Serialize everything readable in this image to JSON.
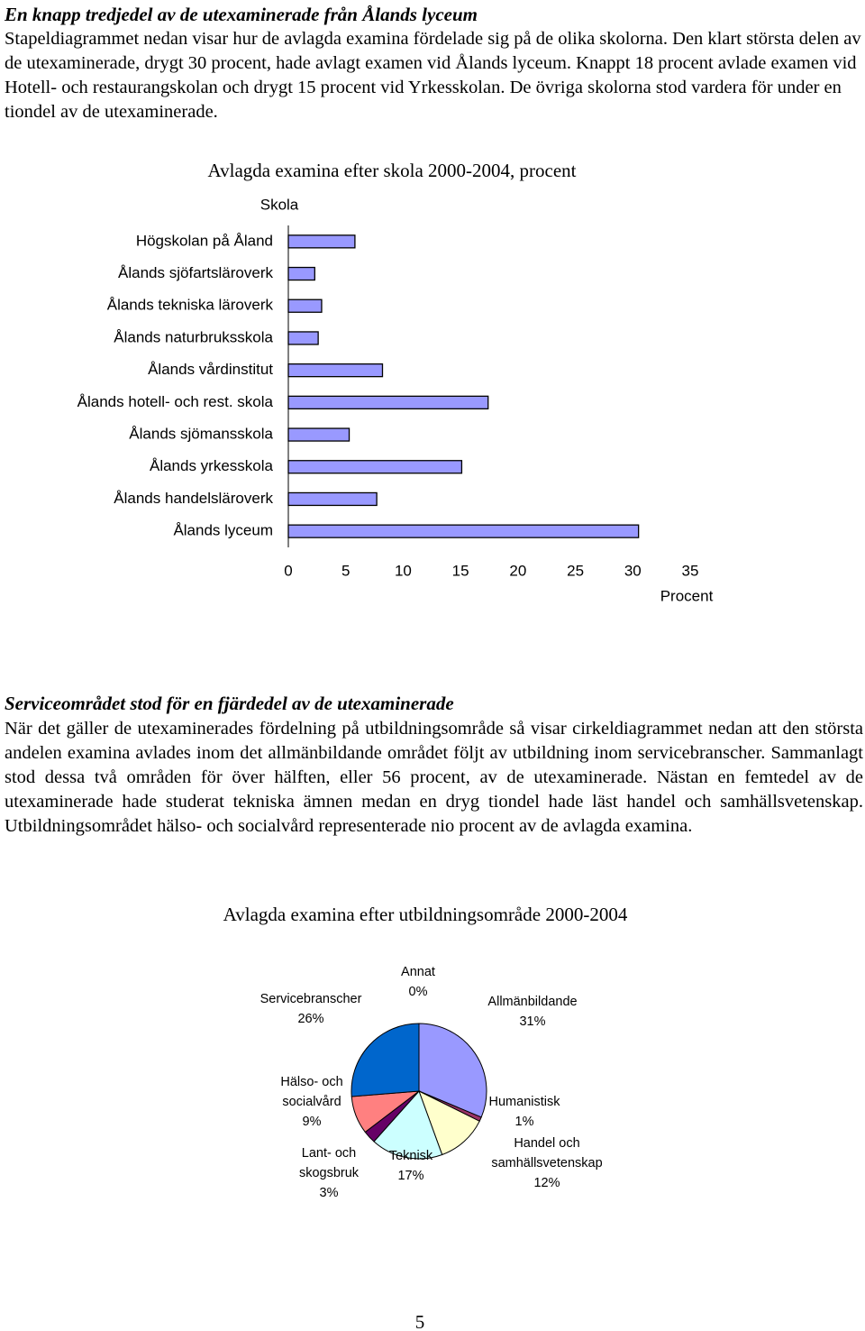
{
  "sections": [
    {
      "title": "En knapp tredjedel av de utexaminerade från Ålands lyceum",
      "text": "Stapeldiagrammet nedan visar hur de avlagda examina fördelade sig på de olika skolorna. Den klart största delen av de utexaminerade, drygt 30 procent, hade avlagt examen vid Ålands lyceum. Knappt 18 procent avlade examen vid Hotell- och restaurangskolan och drygt 15 procent vid Yrkesskolan. De övriga skolorna stod vardera för under en tiondel av de utexaminerade."
    },
    {
      "title": "Serviceområdet stod för en fjärdedel av de utexaminerade",
      "text": "När det gäller de utexaminerades fördelning på utbildningsområde så visar cirkeldiagrammet nedan att den största andelen examina avlades inom det allmänbildande området följt av utbildning inom servicebranscher. Sammanlagt stod dessa två områden för över hälften, eller 56 procent, av de utexaminerade. Nästan en femtedel av de utexaminerade hade studerat tekniska ämnen medan en dryg tiondel hade läst handel och samhällsvetenskap. Utbildningsområdet hälso- och socialvård representerade nio procent av de avlagda examina."
    }
  ],
  "page_number": 5,
  "chart_data": [
    {
      "type": "bar",
      "title": "Avlagda examina efter skola 2000-2004, procent",
      "category_label": "Skola",
      "x_label": "Procent",
      "categories": [
        "Högskolan på Åland",
        "Ålands sjöfartsläroverk",
        "Ålands tekniska läroverk",
        "Ålands naturbruksskola",
        "Ålands vårdinstitut",
        "Ålands hotell- och rest. skola",
        "Ålands sjömansskola",
        "Ålands yrkesskola",
        "Ålands handelsläroverk",
        "Ålands lyceum"
      ],
      "values": [
        5.8,
        2.3,
        2.9,
        2.6,
        8.2,
        17.4,
        5.3,
        15.1,
        7.7,
        30.5
      ],
      "color": "#9999ff",
      "xlim": [
        0,
        35
      ],
      "xticks": [
        0,
        5,
        10,
        15,
        20,
        25,
        30,
        35
      ]
    },
    {
      "type": "pie",
      "title": "Avlagda examina efter utbildningsområde 2000-2004",
      "categories": [
        "Annat",
        "Allmänbildande",
        "Humanistisk",
        "Handel och samhällsvetenskap",
        "Teknisk",
        "Lant- och skogsbruk",
        "Hälso- och socialvård",
        "Servicebranscher"
      ],
      "values": [
        0,
        31,
        1,
        12,
        17,
        3,
        9,
        26
      ],
      "value_labels": [
        "0%",
        "31%",
        "1%",
        "12%",
        "17%",
        "3%",
        "9%",
        "26%"
      ],
      "colors": [
        "#000000",
        "#9999ff",
        "#993366",
        "#ffffcc",
        "#ccffff",
        "#660066",
        "#ff8080",
        "#0066cc"
      ]
    }
  ]
}
